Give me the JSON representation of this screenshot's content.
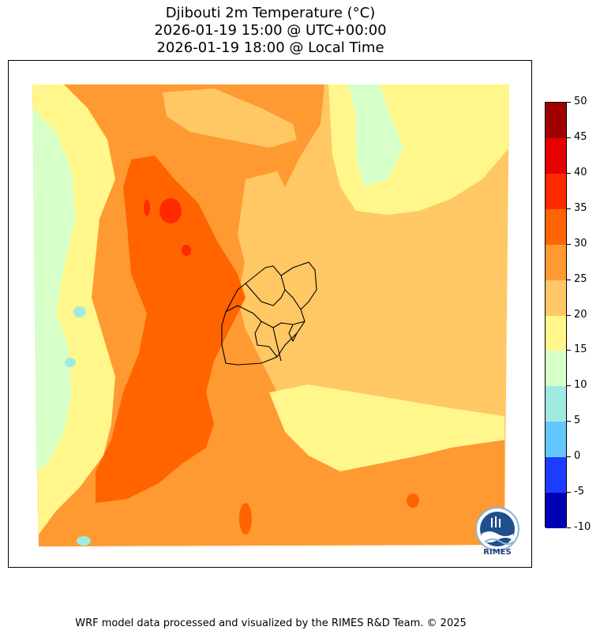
{
  "title": {
    "line1": "Djibouti 2m Temperature (°C)",
    "line2": "2026-01-19 15:00 @ UTC+00:00",
    "line3": "2026-01-19 18:00 @ Local Time"
  },
  "colorbar": {
    "ticks": [
      "50",
      "45",
      "40",
      "35",
      "30",
      "25",
      "20",
      "15",
      "10",
      "5",
      "0",
      "-5",
      "-10"
    ],
    "colors": [
      "#a00000",
      "#e60000",
      "#ff2a00",
      "#ff6400",
      "#ff9a32",
      "#ffc864",
      "#fff78c",
      "#d7ffc8",
      "#a0ebe1",
      "#64c8ff",
      "#1e3cff",
      "#0000b4"
    ]
  },
  "map": {
    "palette": {
      "t30_35": "#ff6400",
      "t25_30": "#ff9a32",
      "t20_25": "#ffc864",
      "t15_20": "#fff78c",
      "t10_15": "#d7ffc8",
      "t5_10": "#a0ebe1",
      "t35_40": "#ff2a00"
    }
  },
  "logo": {
    "text": "RIMES"
  },
  "footer": "WRF model data processed and visualized by the RIMES R&D Team. © 2025"
}
